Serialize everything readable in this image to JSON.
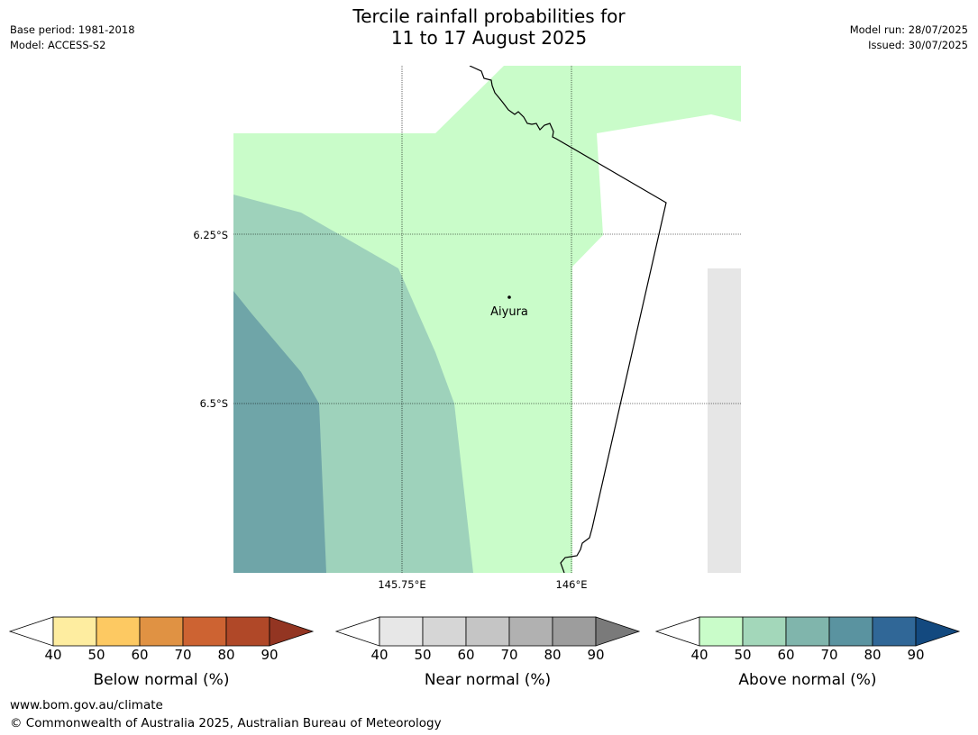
{
  "header": {
    "title_line1": "Tercile rainfall probabilities for",
    "title_line2": "11 to 17 August 2025",
    "base_period": "Base period: 1981-2018",
    "model": "Model: ACCESS-S2",
    "model_run": "Model run: 28/07/2025",
    "issued": "Issued: 30/07/2025"
  },
  "map": {
    "place_label": "Aiyura",
    "lat_labels": [
      "6.25°S",
      "6.5°S"
    ],
    "lon_labels": [
      "145.75°E",
      "146°E"
    ],
    "colors": {
      "above_40_50": "#c9fcc9",
      "above_50_60": "#9ed2bb",
      "above_60_70": "#6fa5a8",
      "near_40_50": "#e6e6e6"
    }
  },
  "legends": [
    {
      "name": "Below normal (%)",
      "ticks": [
        "40",
        "50",
        "60",
        "70",
        "80",
        "90"
      ],
      "colors": [
        "#ffffff",
        "#feeda0",
        "#fdc962",
        "#e09243",
        "#cd6332",
        "#b04828",
        "#933522"
      ]
    },
    {
      "name": "Near normal (%)",
      "ticks": [
        "40",
        "50",
        "60",
        "70",
        "80",
        "90"
      ],
      "colors": [
        "#ffffff",
        "#e7e7e7",
        "#d6d6d6",
        "#c5c5c5",
        "#b1b1b1",
        "#9d9d9d",
        "#7a7a7a"
      ]
    },
    {
      "name": "Above normal (%)",
      "ticks": [
        "40",
        "50",
        "60",
        "70",
        "80",
        "90"
      ],
      "colors": [
        "#ffffff",
        "#c9fcc9",
        "#a3d7ba",
        "#80b5ac",
        "#5a93a0",
        "#306797",
        "#13497f"
      ]
    }
  ],
  "footer": {
    "url": "www.bom.gov.au/climate",
    "copyright": "© Commonwealth of Australia 2025, Australian Bureau of Meteorology"
  }
}
